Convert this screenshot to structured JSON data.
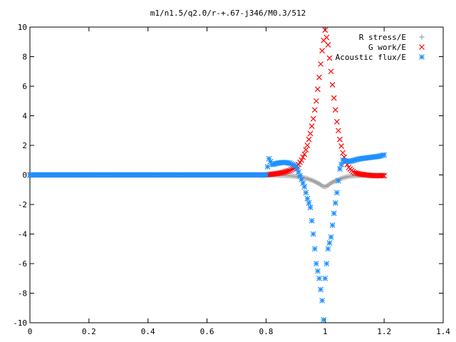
{
  "chart_data": {
    "type": "scatter",
    "title": "m1/n1.5/q2.0/r-+.67-j346/M0.3/512",
    "xlabel": "",
    "ylabel": "",
    "xlim": [
      0,
      1.4
    ],
    "ylim": [
      -10,
      10
    ],
    "x_ticks": [
      "0",
      "0.2",
      "0.4",
      "0.6",
      "0.8",
      "1",
      "1.2",
      "1.4"
    ],
    "y_ticks": [
      "10",
      "8",
      "6",
      "4",
      "2",
      "0",
      "-2",
      "-4",
      "-6",
      "-8",
      "-10"
    ],
    "grid": false,
    "legend_position": "top-right",
    "series": [
      {
        "name": "R stress/E",
        "marker": "plus",
        "color": "#a0a0a0",
        "points": [
          [
            0.0,
            0
          ],
          [
            0.05,
            0
          ],
          [
            0.1,
            0
          ],
          [
            0.15,
            0
          ],
          [
            0.2,
            0
          ],
          [
            0.25,
            0
          ],
          [
            0.3,
            0
          ],
          [
            0.35,
            0
          ],
          [
            0.4,
            0
          ],
          [
            0.45,
            0
          ],
          [
            0.5,
            0
          ],
          [
            0.55,
            0
          ],
          [
            0.6,
            0
          ],
          [
            0.65,
            0
          ],
          [
            0.7,
            0
          ],
          [
            0.75,
            0
          ],
          [
            0.8,
            0
          ],
          [
            0.82,
            0.0
          ],
          [
            0.84,
            -0.02
          ],
          [
            0.86,
            -0.04
          ],
          [
            0.88,
            -0.06
          ],
          [
            0.9,
            -0.1
          ],
          [
            0.92,
            -0.15
          ],
          [
            0.94,
            -0.25
          ],
          [
            0.96,
            -0.4
          ],
          [
            0.98,
            -0.6
          ],
          [
            0.99,
            -0.75
          ],
          [
            1.0,
            -0.8
          ],
          [
            1.01,
            -0.7
          ],
          [
            1.02,
            -0.55
          ],
          [
            1.04,
            -0.35
          ],
          [
            1.06,
            -0.2
          ],
          [
            1.08,
            -0.1
          ],
          [
            1.1,
            -0.06
          ],
          [
            1.12,
            -0.04
          ],
          [
            1.14,
            -0.02
          ],
          [
            1.16,
            -0.01
          ],
          [
            1.18,
            0
          ],
          [
            1.2,
            0
          ]
        ]
      },
      {
        "name": "G work/E",
        "marker": "cross",
        "color": "#ff0000",
        "points": [
          [
            0.0,
            0
          ],
          [
            0.1,
            0
          ],
          [
            0.2,
            0
          ],
          [
            0.3,
            0
          ],
          [
            0.4,
            0
          ],
          [
            0.5,
            0
          ],
          [
            0.6,
            0
          ],
          [
            0.7,
            0
          ],
          [
            0.8,
            0
          ],
          [
            0.82,
            0.05
          ],
          [
            0.84,
            0.1
          ],
          [
            0.86,
            0.18
          ],
          [
            0.88,
            0.3
          ],
          [
            0.9,
            0.5
          ],
          [
            0.91,
            0.7
          ],
          [
            0.92,
            1.0
          ],
          [
            0.93,
            1.4
          ],
          [
            0.94,
            2.0
          ],
          [
            0.95,
            2.8
          ],
          [
            0.96,
            3.8
          ],
          [
            0.97,
            5.0
          ],
          [
            0.98,
            6.6
          ],
          [
            0.99,
            8.4
          ],
          [
            1.0,
            9.8
          ],
          [
            1.01,
            8.8
          ],
          [
            1.02,
            7.0
          ],
          [
            1.03,
            5.2
          ],
          [
            1.04,
            3.6
          ],
          [
            1.05,
            2.4
          ],
          [
            1.06,
            1.5
          ],
          [
            1.07,
            0.9
          ],
          [
            1.08,
            0.5
          ],
          [
            1.09,
            0.3
          ],
          [
            1.1,
            0.15
          ],
          [
            1.12,
            0.05
          ],
          [
            1.14,
            0.0
          ],
          [
            1.16,
            -0.05
          ],
          [
            1.18,
            -0.06
          ],
          [
            1.2,
            -0.05
          ]
        ]
      },
      {
        "name": "Acoustic flux/E",
        "marker": "star",
        "color": "#1e90ff",
        "points": [
          [
            0.0,
            0
          ],
          [
            0.05,
            0
          ],
          [
            0.1,
            0
          ],
          [
            0.15,
            0
          ],
          [
            0.2,
            0
          ],
          [
            0.25,
            0
          ],
          [
            0.3,
            0
          ],
          [
            0.35,
            0
          ],
          [
            0.4,
            0
          ],
          [
            0.45,
            0
          ],
          [
            0.5,
            0
          ],
          [
            0.55,
            0
          ],
          [
            0.6,
            0
          ],
          [
            0.65,
            0
          ],
          [
            0.7,
            0
          ],
          [
            0.75,
            0
          ],
          [
            0.8,
            0
          ],
          [
            0.81,
            1.1
          ],
          [
            0.82,
            0.7
          ],
          [
            0.84,
            0.8
          ],
          [
            0.86,
            0.85
          ],
          [
            0.88,
            0.8
          ],
          [
            0.9,
            0.6
          ],
          [
            0.91,
            0.2
          ],
          [
            0.92,
            -0.3
          ],
          [
            0.93,
            -0.8
          ],
          [
            0.94,
            -1.6
          ],
          [
            0.95,
            -2.2
          ],
          [
            0.96,
            -4.0
          ],
          [
            0.97,
            -6.0
          ],
          [
            0.98,
            -7.0
          ],
          [
            0.99,
            -8.5
          ],
          [
            0.995,
            -9.8
          ],
          [
            1.0,
            -7.0
          ],
          [
            1.01,
            -5.0
          ],
          [
            1.02,
            -4.2
          ],
          [
            1.03,
            -2.6
          ],
          [
            1.04,
            -1.2
          ],
          [
            1.05,
            0.4
          ],
          [
            1.06,
            1.0
          ],
          [
            1.08,
            0.9
          ],
          [
            1.1,
            1.0
          ],
          [
            1.12,
            1.1
          ],
          [
            1.14,
            1.15
          ],
          [
            1.16,
            1.2
          ],
          [
            1.18,
            1.25
          ],
          [
            1.2,
            1.35
          ]
        ]
      }
    ]
  }
}
